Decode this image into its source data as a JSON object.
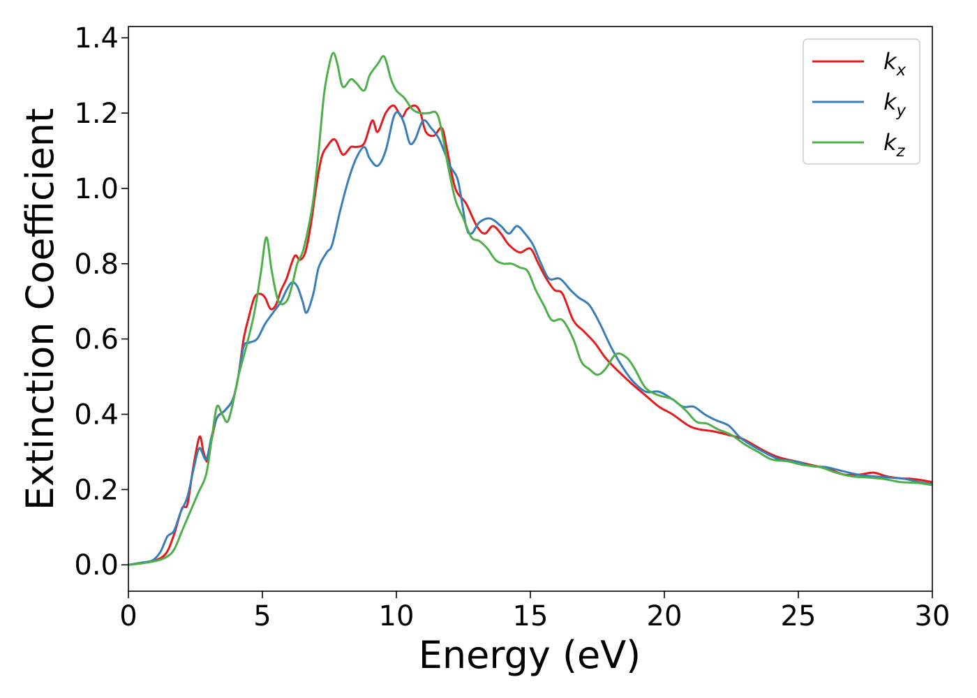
{
  "chart_data": {
    "type": "line",
    "xlabel": "Energy (eV)",
    "ylabel": "Extinction Coefficient",
    "xlim": [
      0,
      30
    ],
    "ylim": [
      -0.07,
      1.43
    ],
    "xticks": [
      0,
      5,
      10,
      15,
      20,
      25,
      30
    ],
    "yticks": [
      0.0,
      0.2,
      0.4,
      0.6,
      0.8,
      1.0,
      1.2,
      1.4
    ],
    "xtick_labels": [
      "0",
      "5",
      "10",
      "15",
      "20",
      "25",
      "30"
    ],
    "ytick_labels": [
      "0.0",
      "0.2",
      "0.4",
      "0.6",
      "0.8",
      "1.0",
      "1.2",
      "1.4"
    ],
    "grid": false,
    "legend_position": "top-right",
    "series": [
      {
        "name": "k_x",
        "label_main": "k",
        "label_sub": "x",
        "color": "#e41a1c",
        "points": [
          [
            0,
            0
          ],
          [
            0.5,
            0.005
          ],
          [
            1.0,
            0.012
          ],
          [
            1.4,
            0.03
          ],
          [
            1.7,
            0.08
          ],
          [
            2.0,
            0.15
          ],
          [
            2.2,
            0.16
          ],
          [
            2.4,
            0.25
          ],
          [
            2.65,
            0.34
          ],
          [
            2.8,
            0.3
          ],
          [
            2.95,
            0.275
          ],
          [
            3.1,
            0.33
          ],
          [
            3.3,
            0.39
          ],
          [
            3.6,
            0.41
          ],
          [
            3.9,
            0.44
          ],
          [
            4.1,
            0.5
          ],
          [
            4.3,
            0.6
          ],
          [
            4.5,
            0.66
          ],
          [
            4.7,
            0.71
          ],
          [
            4.9,
            0.72
          ],
          [
            5.1,
            0.71
          ],
          [
            5.3,
            0.68
          ],
          [
            5.5,
            0.69
          ],
          [
            5.7,
            0.73
          ],
          [
            5.9,
            0.76
          ],
          [
            6.2,
            0.82
          ],
          [
            6.4,
            0.81
          ],
          [
            6.6,
            0.83
          ],
          [
            6.8,
            0.9
          ],
          [
            7.0,
            1.0
          ],
          [
            7.2,
            1.08
          ],
          [
            7.4,
            1.11
          ],
          [
            7.7,
            1.13
          ],
          [
            8.0,
            1.09
          ],
          [
            8.3,
            1.11
          ],
          [
            8.5,
            1.11
          ],
          [
            8.8,
            1.12
          ],
          [
            9.1,
            1.18
          ],
          [
            9.3,
            1.15
          ],
          [
            9.6,
            1.2
          ],
          [
            9.9,
            1.22
          ],
          [
            10.2,
            1.19
          ],
          [
            10.4,
            1.21
          ],
          [
            10.7,
            1.22
          ],
          [
            10.9,
            1.2
          ],
          [
            11.1,
            1.15
          ],
          [
            11.4,
            1.14
          ],
          [
            11.7,
            1.16
          ],
          [
            11.9,
            1.1
          ],
          [
            12.2,
            1.0
          ],
          [
            12.6,
            0.96
          ],
          [
            13.0,
            0.9
          ],
          [
            13.3,
            0.88
          ],
          [
            13.6,
            0.9
          ],
          [
            13.9,
            0.88
          ],
          [
            14.2,
            0.85
          ],
          [
            14.6,
            0.83
          ],
          [
            15.0,
            0.84
          ],
          [
            15.3,
            0.8
          ],
          [
            15.6,
            0.76
          ],
          [
            15.9,
            0.73
          ],
          [
            16.2,
            0.72
          ],
          [
            16.6,
            0.65
          ],
          [
            17.0,
            0.62
          ],
          [
            17.4,
            0.59
          ],
          [
            17.8,
            0.55
          ],
          [
            18.2,
            0.52
          ],
          [
            18.8,
            0.48
          ],
          [
            19.3,
            0.45
          ],
          [
            19.8,
            0.42
          ],
          [
            20.3,
            0.4
          ],
          [
            20.9,
            0.37
          ],
          [
            21.3,
            0.36
          ],
          [
            21.8,
            0.355
          ],
          [
            22.4,
            0.345
          ],
          [
            22.9,
            0.335
          ],
          [
            23.3,
            0.32
          ],
          [
            23.8,
            0.3
          ],
          [
            24.3,
            0.285
          ],
          [
            24.9,
            0.275
          ],
          [
            25.5,
            0.265
          ],
          [
            26.1,
            0.255
          ],
          [
            26.7,
            0.24
          ],
          [
            27.3,
            0.24
          ],
          [
            27.8,
            0.245
          ],
          [
            28.3,
            0.235
          ],
          [
            28.8,
            0.23
          ],
          [
            29.3,
            0.228
          ],
          [
            30.0,
            0.22
          ]
        ]
      },
      {
        "name": "k_y",
        "label_main": "k",
        "label_sub": "y",
        "color": "#377eb8",
        "points": [
          [
            0,
            0
          ],
          [
            0.5,
            0.006
          ],
          [
            0.9,
            0.012
          ],
          [
            1.2,
            0.035
          ],
          [
            1.45,
            0.075
          ],
          [
            1.7,
            0.09
          ],
          [
            1.95,
            0.14
          ],
          [
            2.2,
            0.18
          ],
          [
            2.45,
            0.26
          ],
          [
            2.65,
            0.31
          ],
          [
            2.9,
            0.28
          ],
          [
            3.1,
            0.34
          ],
          [
            3.3,
            0.39
          ],
          [
            3.6,
            0.41
          ],
          [
            3.9,
            0.44
          ],
          [
            4.1,
            0.5
          ],
          [
            4.3,
            0.58
          ],
          [
            4.5,
            0.59
          ],
          [
            4.8,
            0.6
          ],
          [
            5.1,
            0.64
          ],
          [
            5.4,
            0.67
          ],
          [
            5.7,
            0.7
          ],
          [
            5.9,
            0.73
          ],
          [
            6.1,
            0.75
          ],
          [
            6.3,
            0.74
          ],
          [
            6.5,
            0.7
          ],
          [
            6.65,
            0.67
          ],
          [
            6.9,
            0.72
          ],
          [
            7.1,
            0.79
          ],
          [
            7.4,
            0.83
          ],
          [
            7.6,
            0.85
          ],
          [
            7.9,
            0.94
          ],
          [
            8.2,
            1.02
          ],
          [
            8.5,
            1.08
          ],
          [
            8.8,
            1.11
          ],
          [
            9.0,
            1.08
          ],
          [
            9.3,
            1.06
          ],
          [
            9.6,
            1.1
          ],
          [
            9.9,
            1.19
          ],
          [
            10.1,
            1.2
          ],
          [
            10.3,
            1.17
          ],
          [
            10.5,
            1.12
          ],
          [
            10.7,
            1.13
          ],
          [
            11.0,
            1.18
          ],
          [
            11.3,
            1.16
          ],
          [
            11.6,
            1.13
          ],
          [
            12.0,
            1.06
          ],
          [
            12.3,
            1.02
          ],
          [
            12.6,
            0.9
          ],
          [
            12.8,
            0.88
          ],
          [
            13.1,
            0.91
          ],
          [
            13.5,
            0.92
          ],
          [
            13.9,
            0.9
          ],
          [
            14.2,
            0.88
          ],
          [
            14.5,
            0.9
          ],
          [
            14.8,
            0.88
          ],
          [
            15.1,
            0.85
          ],
          [
            15.4,
            0.8
          ],
          [
            15.7,
            0.76
          ],
          [
            16.1,
            0.76
          ],
          [
            16.5,
            0.73
          ],
          [
            16.8,
            0.71
          ],
          [
            17.2,
            0.69
          ],
          [
            17.6,
            0.64
          ],
          [
            18.0,
            0.58
          ],
          [
            18.4,
            0.53
          ],
          [
            18.8,
            0.49
          ],
          [
            19.3,
            0.46
          ],
          [
            19.8,
            0.46
          ],
          [
            20.3,
            0.44
          ],
          [
            20.7,
            0.42
          ],
          [
            21.1,
            0.42
          ],
          [
            21.5,
            0.4
          ],
          [
            21.9,
            0.385
          ],
          [
            22.4,
            0.37
          ],
          [
            22.8,
            0.34
          ],
          [
            23.2,
            0.32
          ],
          [
            23.7,
            0.3
          ],
          [
            24.3,
            0.28
          ],
          [
            24.9,
            0.275
          ],
          [
            25.5,
            0.262
          ],
          [
            26.0,
            0.26
          ],
          [
            26.6,
            0.25
          ],
          [
            27.2,
            0.24
          ],
          [
            27.8,
            0.235
          ],
          [
            28.4,
            0.232
          ],
          [
            29.0,
            0.228
          ],
          [
            29.5,
            0.22
          ],
          [
            30.0,
            0.215
          ]
        ]
      },
      {
        "name": "k_z",
        "label_main": "k",
        "label_sub": "z",
        "color": "#4daf4a",
        "points": [
          [
            0,
            0
          ],
          [
            0.5,
            0.004
          ],
          [
            1.0,
            0.01
          ],
          [
            1.4,
            0.02
          ],
          [
            1.7,
            0.04
          ],
          [
            2.0,
            0.09
          ],
          [
            2.3,
            0.14
          ],
          [
            2.6,
            0.19
          ],
          [
            2.9,
            0.24
          ],
          [
            3.1,
            0.33
          ],
          [
            3.3,
            0.42
          ],
          [
            3.5,
            0.4
          ],
          [
            3.7,
            0.38
          ],
          [
            3.9,
            0.43
          ],
          [
            4.1,
            0.5
          ],
          [
            4.4,
            0.58
          ],
          [
            4.7,
            0.67
          ],
          [
            4.95,
            0.78
          ],
          [
            5.15,
            0.87
          ],
          [
            5.35,
            0.78
          ],
          [
            5.6,
            0.7
          ],
          [
            5.9,
            0.7
          ],
          [
            6.1,
            0.74
          ],
          [
            6.3,
            0.8
          ],
          [
            6.5,
            0.83
          ],
          [
            6.7,
            0.89
          ],
          [
            6.9,
            0.97
          ],
          [
            7.1,
            1.1
          ],
          [
            7.3,
            1.25
          ],
          [
            7.5,
            1.33
          ],
          [
            7.65,
            1.36
          ],
          [
            7.8,
            1.33
          ],
          [
            8.0,
            1.27
          ],
          [
            8.3,
            1.29
          ],
          [
            8.5,
            1.28
          ],
          [
            8.8,
            1.26
          ],
          [
            9.0,
            1.3
          ],
          [
            9.3,
            1.33
          ],
          [
            9.55,
            1.35
          ],
          [
            9.8,
            1.29
          ],
          [
            10.0,
            1.26
          ],
          [
            10.3,
            1.24
          ],
          [
            10.6,
            1.21
          ],
          [
            10.9,
            1.2
          ],
          [
            11.2,
            1.2
          ],
          [
            11.5,
            1.2
          ],
          [
            11.7,
            1.15
          ],
          [
            11.9,
            1.07
          ],
          [
            12.2,
            0.97
          ],
          [
            12.5,
            0.92
          ],
          [
            12.8,
            0.87
          ],
          [
            13.1,
            0.86
          ],
          [
            13.4,
            0.84
          ],
          [
            13.7,
            0.81
          ],
          [
            14.0,
            0.8
          ],
          [
            14.3,
            0.8
          ],
          [
            14.6,
            0.79
          ],
          [
            14.9,
            0.78
          ],
          [
            15.2,
            0.73
          ],
          [
            15.5,
            0.69
          ],
          [
            15.8,
            0.65
          ],
          [
            16.2,
            0.65
          ],
          [
            16.6,
            0.6
          ],
          [
            16.9,
            0.54
          ],
          [
            17.2,
            0.52
          ],
          [
            17.5,
            0.505
          ],
          [
            17.8,
            0.52
          ],
          [
            18.2,
            0.56
          ],
          [
            18.6,
            0.55
          ],
          [
            18.9,
            0.52
          ],
          [
            19.3,
            0.47
          ],
          [
            19.8,
            0.45
          ],
          [
            20.3,
            0.44
          ],
          [
            20.8,
            0.41
          ],
          [
            21.2,
            0.38
          ],
          [
            21.6,
            0.375
          ],
          [
            22.0,
            0.36
          ],
          [
            22.5,
            0.345
          ],
          [
            23.0,
            0.32
          ],
          [
            23.5,
            0.3
          ],
          [
            24.0,
            0.28
          ],
          [
            24.6,
            0.275
          ],
          [
            25.2,
            0.265
          ],
          [
            25.8,
            0.26
          ],
          [
            26.4,
            0.245
          ],
          [
            27.0,
            0.235
          ],
          [
            27.6,
            0.232
          ],
          [
            28.2,
            0.228
          ],
          [
            28.8,
            0.22
          ],
          [
            29.4,
            0.218
          ],
          [
            30.0,
            0.212
          ]
        ]
      }
    ]
  }
}
